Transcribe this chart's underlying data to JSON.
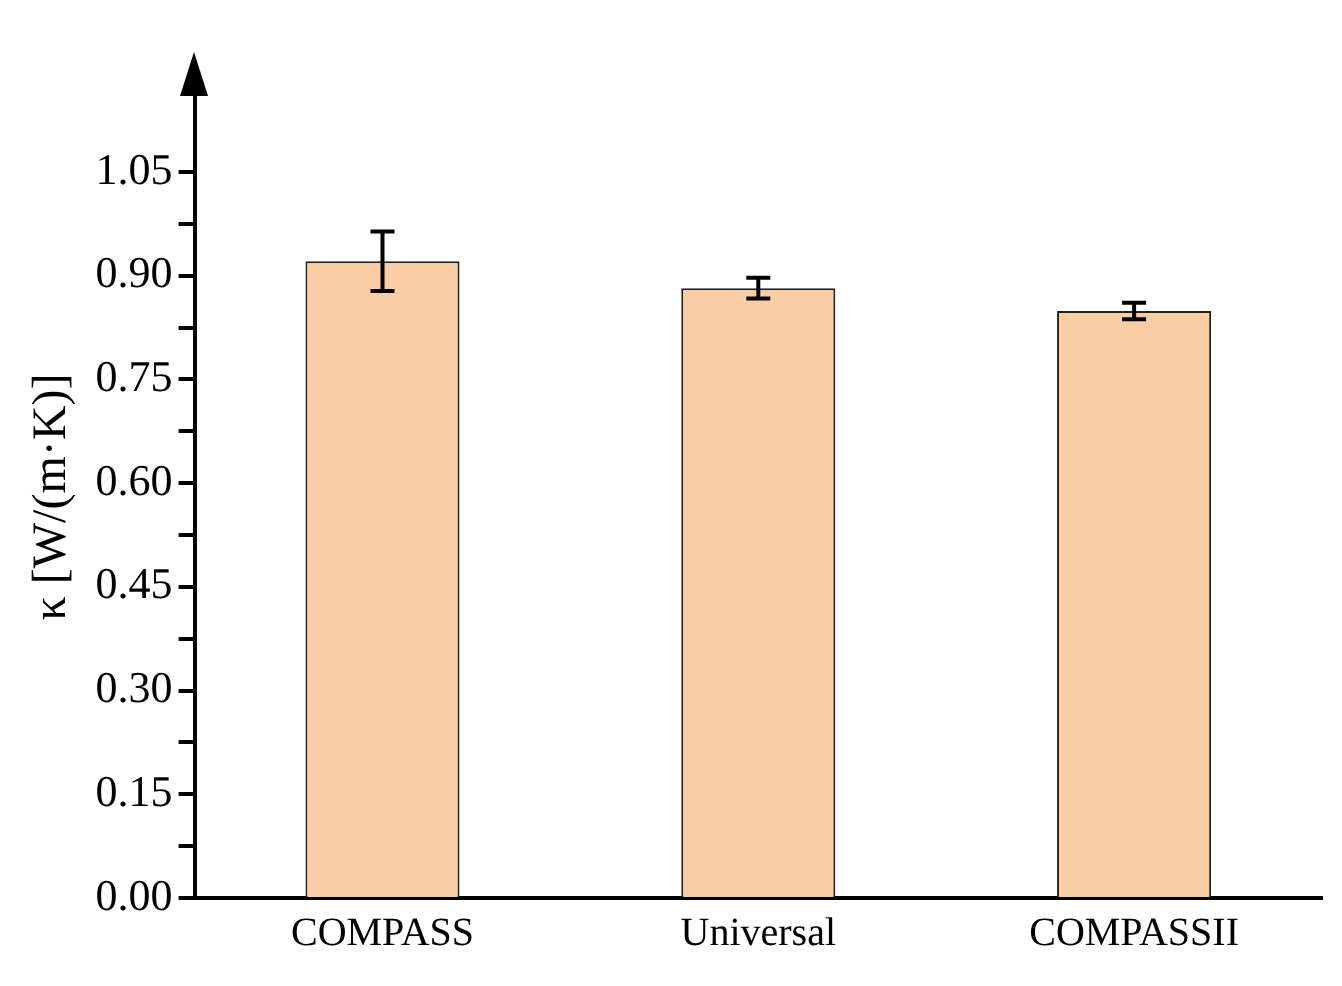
{
  "chart_data": {
    "type": "bar",
    "ylabel": "κ [W/(m·K)]",
    "categories": [
      "COMPASS",
      "Universal",
      "COMPASSII"
    ],
    "values": [
      0.921,
      0.882,
      0.849
    ],
    "errors": [
      0.043,
      0.015,
      0.012
    ],
    "color": "#fbcda4",
    "ylim": [
      0,
      1.16
    ],
    "yticks": [
      {
        "value": 0,
        "label": "0.00"
      },
      {
        "value": 0.075,
        "label": null
      },
      {
        "value": 0.15,
        "label": "0.15"
      },
      {
        "value": 0.225,
        "label": null
      },
      {
        "value": 0.3,
        "label": "0.30"
      },
      {
        "value": 0.375,
        "label": null
      },
      {
        "value": 0.45,
        "label": "0.45"
      },
      {
        "value": 0.525,
        "label": null
      },
      {
        "value": 0.6,
        "label": "0.60"
      },
      {
        "value": 0.675,
        "label": null
      },
      {
        "value": 0.75,
        "label": "0.75"
      },
      {
        "value": 0.825,
        "label": null
      },
      {
        "value": 0.9,
        "label": "0.90"
      },
      {
        "value": 0.975,
        "label": null
      },
      {
        "value": 1.05,
        "label": "1.05"
      }
    ],
    "grid": false,
    "legend": false
  }
}
